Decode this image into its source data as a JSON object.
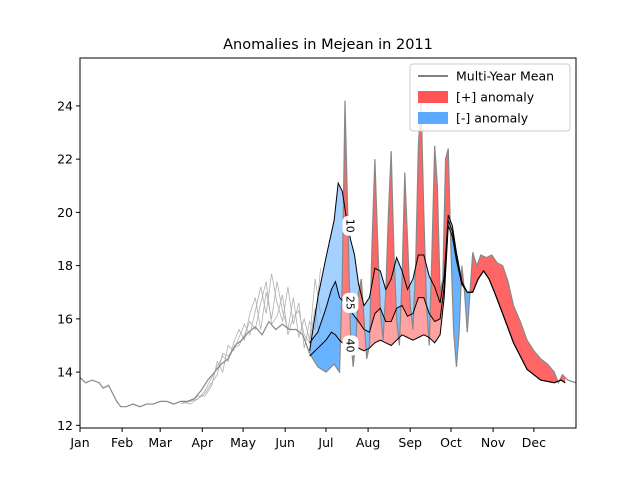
{
  "chart_data": {
    "type": "area",
    "title": "Anomalies in Mejean in 2011",
    "xlabel": "",
    "ylabel": "",
    "xlim": [
      1,
      366
    ],
    "ylim": [
      11.9,
      25.8
    ],
    "x_ticks": [
      {
        "day": 1,
        "label": "Jan"
      },
      {
        "day": 32,
        "label": "Feb"
      },
      {
        "day": 60,
        "label": "Mar"
      },
      {
        "day": 91,
        "label": "Apr"
      },
      {
        "day": 121,
        "label": "May"
      },
      {
        "day": 152,
        "label": "Jun"
      },
      {
        "day": 182,
        "label": "Jul"
      },
      {
        "day": 213,
        "label": "Aug"
      },
      {
        "day": 244,
        "label": "Sep"
      },
      {
        "day": 274,
        "label": "Oct"
      },
      {
        "day": 305,
        "label": "Nov"
      },
      {
        "day": 335,
        "label": "Dec"
      }
    ],
    "y_ticks": [
      12,
      14,
      16,
      18,
      20,
      22,
      24
    ],
    "legend": {
      "position": "top-right",
      "entries": [
        {
          "label": "Multi-Year Mean",
          "kind": "line",
          "color": "#000000"
        },
        {
          "label": "[+] anomaly",
          "kind": "patch",
          "color": "#ff5555"
        },
        {
          "label": "[-] anomaly",
          "kind": "patch",
          "color": "#5aabff"
        }
      ]
    },
    "colors": {
      "positive": "#ff5555",
      "negative": "#5aabff",
      "mean": "#000000",
      "history": "#b0b0b0",
      "observed": "#888888"
    },
    "percentile_labels": [
      {
        "label": "10",
        "day": 200,
        "value": 19.5
      },
      {
        "label": "25",
        "day": 200,
        "value": 16.6
      },
      {
        "label": "40",
        "day": 200,
        "value": 15.0
      }
    ],
    "mean_series": [
      {
        "name": "10",
        "points": [
          [
            170,
            14.8
          ],
          [
            176,
            16.8
          ],
          [
            182,
            18.3
          ],
          [
            188,
            19.7
          ],
          [
            191,
            21.1
          ],
          [
            194,
            20.8
          ],
          [
            197,
            19.8
          ],
          [
            200,
            19.0
          ],
          [
            203,
            18.4
          ],
          [
            206,
            17.3
          ],
          [
            210,
            16.5
          ],
          [
            214,
            16.8
          ],
          [
            218,
            17.9
          ],
          [
            222,
            17.8
          ],
          [
            226,
            17.1
          ],
          [
            230,
            17.5
          ],
          [
            234,
            18.3
          ],
          [
            238,
            17.8
          ],
          [
            242,
            17.1
          ],
          [
            246,
            17.5
          ],
          [
            250,
            18.4
          ],
          [
            254,
            18.4
          ],
          [
            258,
            17.6
          ],
          [
            262,
            17.2
          ],
          [
            266,
            16.6
          ],
          [
            269,
            17.6
          ],
          [
            272,
            19.9
          ],
          [
            275,
            19.5
          ],
          [
            278,
            18.5
          ],
          [
            282,
            17.4
          ],
          [
            286,
            17.0
          ],
          [
            290,
            17.0
          ],
          [
            294,
            17.5
          ],
          [
            298,
            17.8
          ],
          [
            302,
            17.5
          ],
          [
            306,
            17.0
          ],
          [
            312,
            16.2
          ],
          [
            320,
            15.1
          ],
          [
            330,
            14.1
          ],
          [
            340,
            13.7
          ],
          [
            350,
            13.6
          ],
          [
            355,
            13.7
          ],
          [
            358,
            13.6
          ]
        ]
      },
      {
        "name": "25",
        "points": [
          [
            170,
            15.1
          ],
          [
            176,
            15.5
          ],
          [
            182,
            16.4
          ],
          [
            186,
            17.1
          ],
          [
            189,
            17.4
          ],
          [
            192,
            16.8
          ],
          [
            196,
            16.6
          ],
          [
            200,
            16.3
          ],
          [
            203,
            16.1
          ],
          [
            206,
            15.9
          ],
          [
            210,
            15.6
          ],
          [
            214,
            15.5
          ],
          [
            218,
            16.2
          ],
          [
            222,
            16.4
          ],
          [
            226,
            15.9
          ],
          [
            230,
            15.9
          ],
          [
            234,
            16.4
          ],
          [
            238,
            16.5
          ],
          [
            242,
            16.1
          ],
          [
            246,
            16.2
          ],
          [
            250,
            16.8
          ],
          [
            254,
            16.8
          ],
          [
            258,
            16.2
          ],
          [
            262,
            15.9
          ],
          [
            266,
            16.0
          ],
          [
            269,
            17.2
          ],
          [
            272,
            19.7
          ],
          [
            275,
            19.3
          ],
          [
            278,
            18.3
          ],
          [
            282,
            17.3
          ],
          [
            286,
            17.0
          ],
          [
            290,
            17.0
          ],
          [
            294,
            17.5
          ],
          [
            298,
            17.8
          ],
          [
            302,
            17.5
          ],
          [
            306,
            17.0
          ],
          [
            312,
            16.2
          ],
          [
            320,
            15.1
          ],
          [
            330,
            14.1
          ],
          [
            340,
            13.7
          ],
          [
            350,
            13.6
          ],
          [
            355,
            13.7
          ],
          [
            358,
            13.6
          ]
        ]
      },
      {
        "name": "40",
        "points": [
          [
            170,
            14.6
          ],
          [
            176,
            14.9
          ],
          [
            182,
            15.2
          ],
          [
            186,
            15.5
          ],
          [
            189,
            15.4
          ],
          [
            192,
            15.2
          ],
          [
            196,
            15.0
          ],
          [
            200,
            15.1
          ],
          [
            203,
            15.0
          ],
          [
            206,
            14.9
          ],
          [
            210,
            14.8
          ],
          [
            214,
            14.9
          ],
          [
            218,
            15.1
          ],
          [
            222,
            15.2
          ],
          [
            226,
            15.1
          ],
          [
            230,
            15.0
          ],
          [
            234,
            15.2
          ],
          [
            238,
            15.4
          ],
          [
            242,
            15.3
          ],
          [
            246,
            15.2
          ],
          [
            250,
            15.3
          ],
          [
            254,
            15.4
          ],
          [
            258,
            15.3
          ],
          [
            262,
            15.1
          ],
          [
            266,
            15.4
          ],
          [
            269,
            16.8
          ],
          [
            272,
            19.5
          ],
          [
            275,
            19.1
          ],
          [
            278,
            18.2
          ],
          [
            282,
            17.3
          ],
          [
            286,
            17.0
          ],
          [
            290,
            17.0
          ],
          [
            294,
            17.5
          ],
          [
            298,
            17.8
          ],
          [
            302,
            17.5
          ],
          [
            306,
            17.0
          ],
          [
            312,
            16.2
          ],
          [
            320,
            15.1
          ],
          [
            330,
            14.1
          ],
          [
            340,
            13.7
          ],
          [
            350,
            13.6
          ],
          [
            355,
            13.7
          ],
          [
            358,
            13.6
          ]
        ]
      }
    ],
    "observed": [
      [
        1,
        13.8
      ],
      [
        5,
        13.6
      ],
      [
        10,
        13.7
      ],
      [
        15,
        13.6
      ],
      [
        18,
        13.4
      ],
      [
        22,
        13.5
      ],
      [
        25,
        13.2
      ],
      [
        28,
        12.9
      ],
      [
        31,
        12.7
      ],
      [
        35,
        12.7
      ],
      [
        40,
        12.8
      ],
      [
        45,
        12.7
      ],
      [
        50,
        12.8
      ],
      [
        55,
        12.8
      ],
      [
        60,
        12.9
      ],
      [
        65,
        12.9
      ],
      [
        70,
        12.8
      ],
      [
        75,
        12.9
      ],
      [
        80,
        12.9
      ],
      [
        85,
        13.0
      ],
      [
        90,
        13.3
      ],
      [
        95,
        13.7
      ],
      [
        100,
        14.0
      ],
      [
        105,
        14.3
      ],
      [
        110,
        14.5
      ],
      [
        115,
        15.0
      ],
      [
        120,
        15.2
      ],
      [
        125,
        15.5
      ],
      [
        130,
        15.7
      ],
      [
        135,
        15.4
      ],
      [
        140,
        15.9
      ],
      [
        145,
        15.6
      ],
      [
        150,
        15.8
      ],
      [
        155,
        15.6
      ],
      [
        160,
        15.6
      ],
      [
        165,
        15.4
      ],
      [
        170,
        14.7
      ],
      [
        176,
        14.2
      ],
      [
        182,
        14.0
      ],
      [
        188,
        14.3
      ],
      [
        192,
        14.0
      ],
      [
        194,
        17.5
      ],
      [
        196,
        24.2
      ],
      [
        198,
        20.0
      ],
      [
        200,
        15.5
      ],
      [
        202,
        14.2
      ],
      [
        204,
        15.2
      ],
      [
        206,
        17.0
      ],
      [
        208,
        17.5
      ],
      [
        210,
        16.0
      ],
      [
        212,
        14.5
      ],
      [
        214,
        15.0
      ],
      [
        216,
        19.0
      ],
      [
        218,
        22.0
      ],
      [
        220,
        19.0
      ],
      [
        222,
        16.3
      ],
      [
        224,
        15.2
      ],
      [
        226,
        17.0
      ],
      [
        228,
        20.0
      ],
      [
        230,
        22.3
      ],
      [
        232,
        18.5
      ],
      [
        234,
        16.0
      ],
      [
        236,
        15.0
      ],
      [
        238,
        17.5
      ],
      [
        240,
        21.5
      ],
      [
        242,
        19.0
      ],
      [
        244,
        16.5
      ],
      [
        246,
        15.6
      ],
      [
        248,
        18.0
      ],
      [
        250,
        22.5
      ],
      [
        252,
        24.2
      ],
      [
        254,
        20.0
      ],
      [
        256,
        16.5
      ],
      [
        258,
        15.0
      ],
      [
        260,
        18.5
      ],
      [
        262,
        22.5
      ],
      [
        264,
        21.0
      ],
      [
        266,
        17.0
      ],
      [
        268,
        17.5
      ],
      [
        270,
        22.0
      ],
      [
        272,
        22.4
      ],
      [
        274,
        18.5
      ],
      [
        276,
        15.5
      ],
      [
        278,
        14.2
      ],
      [
        280,
        15.5
      ],
      [
        282,
        18.0
      ],
      [
        284,
        17.0
      ],
      [
        286,
        15.5
      ],
      [
        288,
        17.0
      ],
      [
        290,
        18.5
      ],
      [
        293,
        18.0
      ],
      [
        296,
        18.4
      ],
      [
        300,
        18.3
      ],
      [
        304,
        18.4
      ],
      [
        308,
        18.1
      ],
      [
        312,
        18.0
      ],
      [
        316,
        17.4
      ],
      [
        320,
        16.5
      ],
      [
        325,
        15.9
      ],
      [
        330,
        15.2
      ],
      [
        335,
        14.8
      ],
      [
        340,
        14.5
      ],
      [
        345,
        14.3
      ],
      [
        350,
        14.0
      ],
      [
        353,
        13.6
      ],
      [
        356,
        13.9
      ],
      [
        360,
        13.7
      ],
      [
        366,
        13.6
      ]
    ],
    "history_traces": [
      [
        [
          75,
          12.9
        ],
        [
          82,
          12.9
        ],
        [
          88,
          13.0
        ],
        [
          93,
          13.3
        ],
        [
          98,
          13.8
        ],
        [
          102,
          14.2
        ],
        [
          106,
          14.6
        ],
        [
          110,
          14.4
        ],
        [
          114,
          15.1
        ],
        [
          118,
          15.6
        ],
        [
          122,
          15.2
        ],
        [
          126,
          16.2
        ],
        [
          130,
          16.8
        ],
        [
          134,
          15.6
        ],
        [
          138,
          17.0
        ],
        [
          142,
          16.0
        ],
        [
          146,
          17.4
        ],
        [
          150,
          16.3
        ],
        [
          154,
          15.6
        ],
        [
          158,
          16.8
        ],
        [
          162,
          15.3
        ],
        [
          166,
          16.0
        ],
        [
          170,
          15.2
        ],
        [
          174,
          17.5
        ],
        [
          178,
          16.2
        ]
      ],
      [
        [
          75,
          12.8
        ],
        [
          82,
          12.9
        ],
        [
          88,
          13.1
        ],
        [
          93,
          13.1
        ],
        [
          98,
          13.5
        ],
        [
          102,
          14.4
        ],
        [
          106,
          14.0
        ],
        [
          110,
          15.0
        ],
        [
          114,
          14.8
        ],
        [
          118,
          15.3
        ],
        [
          122,
          15.8
        ],
        [
          126,
          15.4
        ],
        [
          130,
          16.3
        ],
        [
          134,
          17.2
        ],
        [
          138,
          16.2
        ],
        [
          142,
          17.7
        ],
        [
          146,
          16.6
        ],
        [
          150,
          15.9
        ],
        [
          154,
          17.2
        ],
        [
          158,
          15.8
        ],
        [
          162,
          16.6
        ],
        [
          166,
          14.9
        ],
        [
          170,
          15.9
        ],
        [
          174,
          15.6
        ],
        [
          178,
          17.9
        ]
      ],
      [
        [
          75,
          12.9
        ],
        [
          82,
          12.8
        ],
        [
          88,
          13.0
        ],
        [
          93,
          13.2
        ],
        [
          98,
          13.6
        ],
        [
          102,
          13.9
        ],
        [
          106,
          14.7
        ],
        [
          110,
          14.6
        ],
        [
          114,
          14.9
        ],
        [
          118,
          15.0
        ],
        [
          122,
          15.4
        ],
        [
          126,
          15.9
        ],
        [
          130,
          15.6
        ],
        [
          134,
          16.6
        ],
        [
          138,
          17.4
        ],
        [
          142,
          15.8
        ],
        [
          146,
          16.1
        ],
        [
          150,
          16.9
        ],
        [
          154,
          15.4
        ],
        [
          158,
          16.1
        ],
        [
          162,
          16.3
        ],
        [
          166,
          15.4
        ],
        [
          170,
          15.1
        ],
        [
          174,
          16.4
        ],
        [
          178,
          15.1
        ]
      ]
    ]
  }
}
